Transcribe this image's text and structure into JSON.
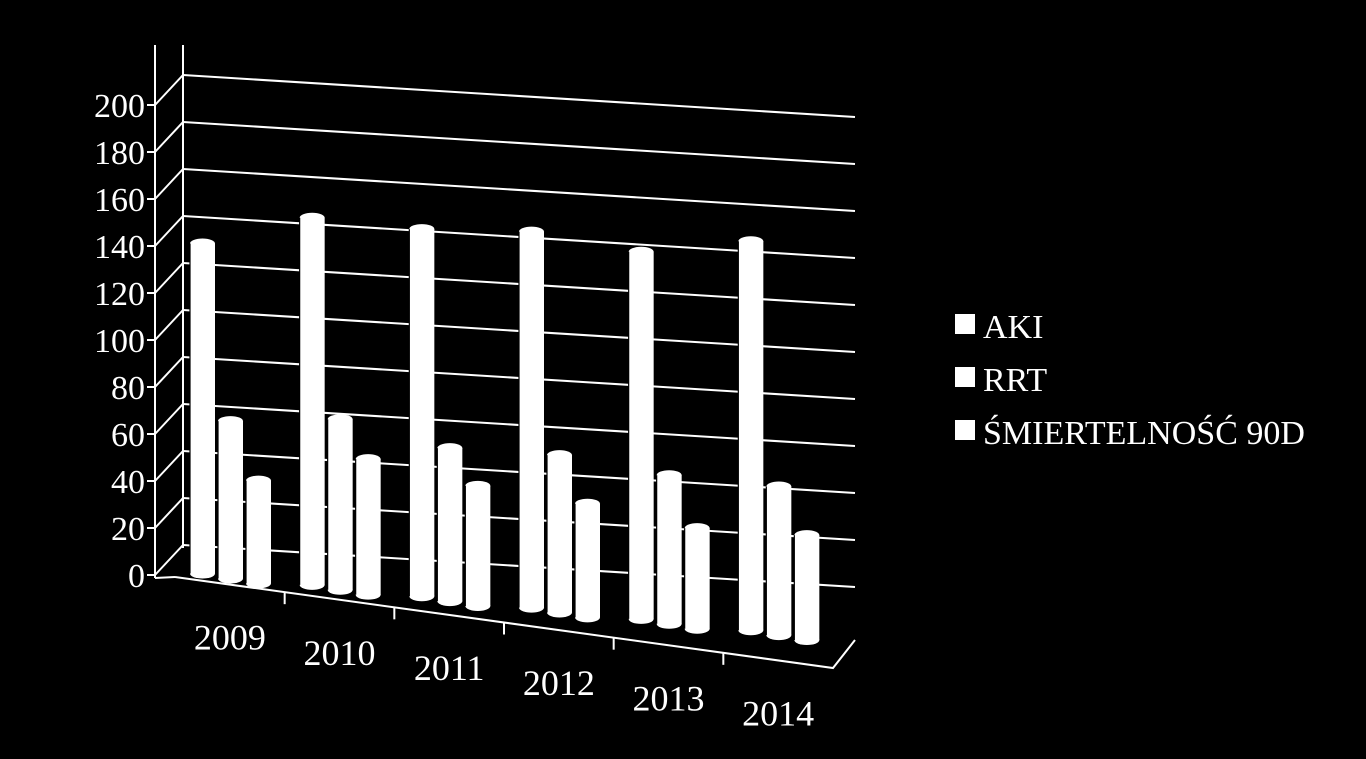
{
  "chart_data": {
    "type": "bar",
    "title": "",
    "xlabel": "",
    "ylabel": "",
    "categories": [
      "2009",
      "2010",
      "2011",
      "2012",
      "2013",
      "2014"
    ],
    "series": [
      {
        "name": "AKI",
        "values": [
          151,
          168,
          168,
          172,
          168,
          178
        ]
      },
      {
        "name": "RRT",
        "values": [
          72,
          78,
          70,
          72,
          68,
          68
        ]
      },
      {
        "name": "ŚMIERTELNOŚĆ 90D",
        "values": [
          47,
          62,
          55,
          52,
          46,
          48
        ]
      }
    ],
    "ylim": [
      0,
      200
    ],
    "yticks": [
      "0",
      "20",
      "40",
      "60",
      "80",
      "100",
      "120",
      "140",
      "160",
      "180",
      "200"
    ],
    "grid": true,
    "legend_position": "right",
    "style": "3d-cylinder",
    "colors": {
      "background": "#000000",
      "bars": "#ffffff",
      "grid": "#ffffff",
      "text": "#ffffff"
    }
  }
}
